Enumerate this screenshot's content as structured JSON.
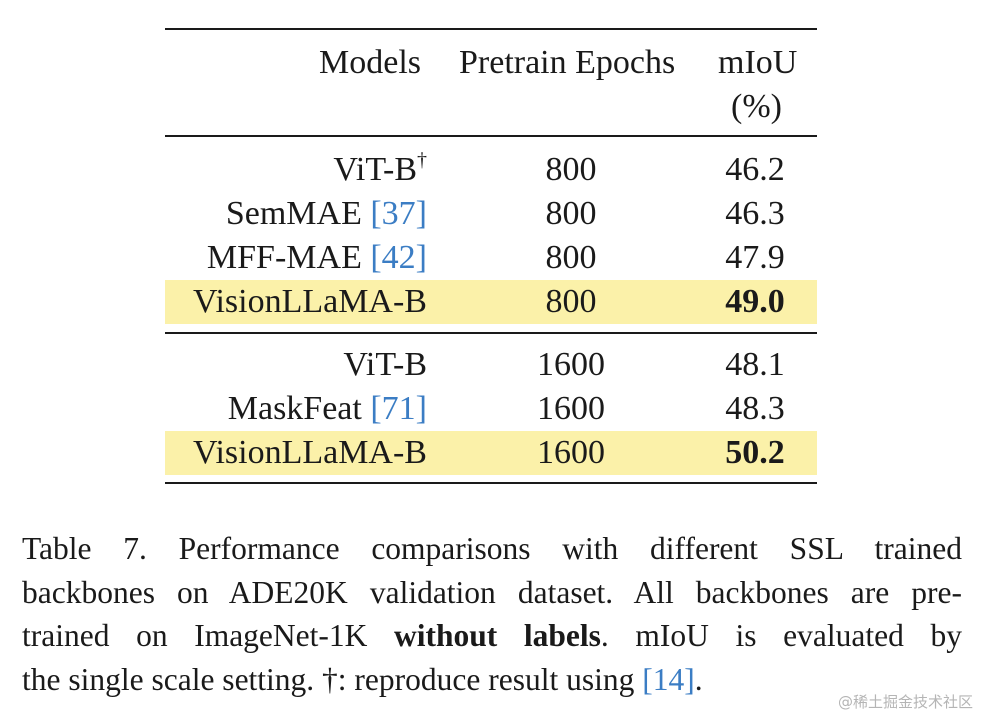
{
  "table": {
    "headers": {
      "models": "Models",
      "epochs": "Pretrain Epochs",
      "miou_line1": "mIoU",
      "miou_line2": "(%)"
    },
    "group1": [
      {
        "model": "ViT-B",
        "sup": "†",
        "ref": "",
        "epochs": "800",
        "miou": "46.2",
        "highlight": false,
        "bold": false
      },
      {
        "model": "SemMAE ",
        "sup": "",
        "ref": "[37]",
        "epochs": "800",
        "miou": "46.3",
        "highlight": false,
        "bold": false
      },
      {
        "model": "MFF-MAE ",
        "sup": "",
        "ref": "[42]",
        "epochs": "800",
        "miou": "47.9",
        "highlight": false,
        "bold": false
      },
      {
        "model": "VisionLLaMA-B",
        "sup": "",
        "ref": "",
        "epochs": "800",
        "miou": "49.0",
        "highlight": true,
        "bold": true
      }
    ],
    "group2": [
      {
        "model": "ViT-B",
        "sup": "",
        "ref": "",
        "epochs": "1600",
        "miou": "48.1",
        "highlight": false,
        "bold": false
      },
      {
        "model": "MaskFeat ",
        "sup": "",
        "ref": "[71]",
        "epochs": "1600",
        "miou": "48.3",
        "highlight": false,
        "bold": false
      },
      {
        "model": "VisionLLaMA-B",
        "sup": "",
        "ref": "",
        "epochs": "1600",
        "miou": "50.2",
        "highlight": true,
        "bold": true
      }
    ],
    "colors": {
      "highlight": "#fbf1a9",
      "reference_link": "#3b7dc4"
    }
  },
  "caption": {
    "line1": "Table 7.  Performance comparisons with different SSL trained",
    "line2": "backbones on ADE20K validation dataset. All backbones are pre-",
    "line3_pre": "trained on ImageNet-1K  ",
    "line3_bold": "without labels",
    "line3_post": ".  mIoU is evaluated by",
    "line4_pre": "the single scale setting. †: reproduce result using ",
    "line4_ref": "[14]",
    "line4_post": "."
  },
  "watermark": "@稀土掘金技术社区"
}
